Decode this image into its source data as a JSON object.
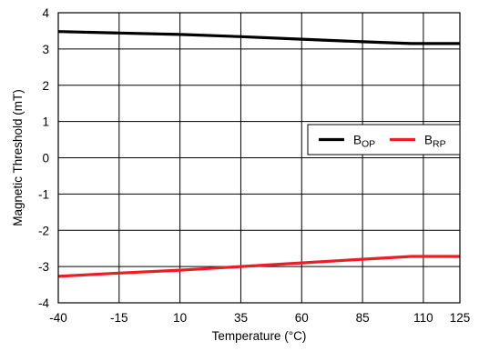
{
  "chart_data": {
    "type": "line",
    "xlabel": "Temperature (°C)",
    "ylabel": "Magnetic Threshold (mT)",
    "xlim": [
      -40,
      125
    ],
    "ylim": [
      -4,
      4
    ],
    "x_ticks": [
      -40,
      -15,
      10,
      35,
      60,
      85,
      110,
      125
    ],
    "y_ticks": [
      4,
      3,
      2,
      1,
      0,
      -1,
      -2,
      -3,
      -4
    ],
    "grid": true,
    "legend_position": "right",
    "series": [
      {
        "name": "B",
        "name_sub": "OP",
        "color": "#000000",
        "x": [
          -40,
          -15,
          10,
          35,
          60,
          85,
          105,
          125
        ],
        "y": [
          3.48,
          3.44,
          3.4,
          3.34,
          3.27,
          3.2,
          3.15,
          3.15
        ]
      },
      {
        "name": "B",
        "name_sub": "RP",
        "color": "#ee1c25",
        "x": [
          -40,
          -15,
          10,
          35,
          60,
          85,
          105,
          125
        ],
        "y": [
          -3.27,
          -3.18,
          -3.1,
          -3.0,
          -2.9,
          -2.8,
          -2.72,
          -2.72
        ]
      }
    ]
  }
}
